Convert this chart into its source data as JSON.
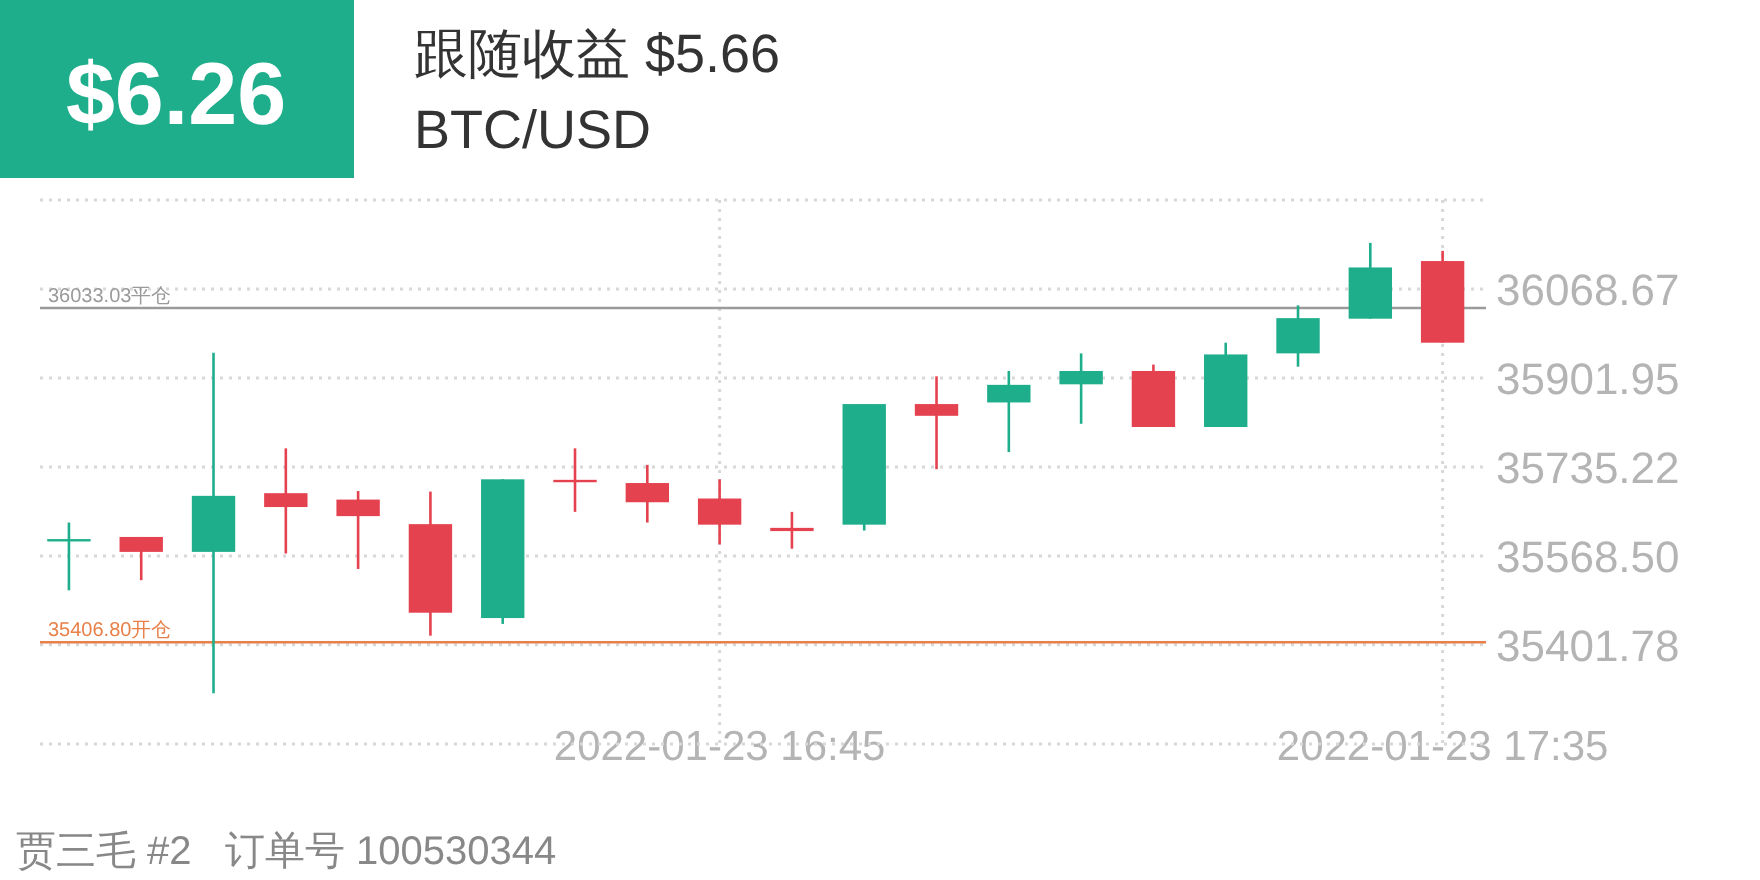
{
  "chart_data": {
    "type": "candlestick",
    "title": "跟随收益 $5.66",
    "subtitle": "BTC/USD",
    "annotations": [
      "$6.26",
      "贾三毛 #2   订单号 100530344"
    ],
    "x": [
      "2022-01-23T16:00",
      "2022-01-23T16:05",
      "2022-01-23T16:10",
      "2022-01-23T16:15",
      "2022-01-23T16:20",
      "2022-01-23T16:25",
      "2022-01-23T16:30",
      "2022-01-23T16:35",
      "2022-01-23T16:40",
      "2022-01-23T16:45",
      "2022-01-23T16:50",
      "2022-01-23T16:55",
      "2022-01-23T17:00",
      "2022-01-23T17:05",
      "2022-01-23T17:10",
      "2022-01-23T17:15",
      "2022-01-23T17:20",
      "2022-01-23T17:25",
      "2022-01-23T17:30",
      "2022-01-23T17:35"
    ],
    "ohlc": [
      [
        35598,
        35631,
        35504,
        35600
      ],
      [
        35604,
        35604,
        35523,
        35576
      ],
      [
        35576,
        35949,
        35311,
        35681
      ],
      [
        35686,
        35770,
        35573,
        35660
      ],
      [
        35674,
        35690,
        35544,
        35643
      ],
      [
        35628,
        35689,
        35419,
        35462
      ],
      [
        35452,
        35712,
        35441,
        35712
      ],
      [
        35711,
        35770,
        35651,
        35707
      ],
      [
        35705,
        35739,
        35631,
        35669
      ],
      [
        35676,
        35712,
        35590,
        35627
      ],
      [
        35621,
        35651,
        35582,
        35615
      ],
      [
        35627,
        35853,
        35616,
        35853
      ],
      [
        35853,
        35905,
        35731,
        35831
      ],
      [
        35856,
        35915,
        35763,
        35889
      ],
      [
        35890,
        35948,
        35816,
        35915
      ],
      [
        35915,
        35927,
        35810,
        35810
      ],
      [
        35810,
        35968,
        35810,
        35946
      ],
      [
        35948,
        36038,
        35923,
        36014
      ],
      [
        36013,
        36155,
        36013,
        36109
      ],
      [
        36121,
        36140,
        35968,
        35968
      ]
    ],
    "colors": [
      "#1fae8c",
      "#e5424f",
      "#1fae8c",
      "#e5424f",
      "#e5424f",
      "#e5424f",
      "#1fae8c",
      "#e5424f",
      "#e5424f",
      "#e5424f",
      "#e5424f",
      "#1fae8c",
      "#e5424f",
      "#1fae8c",
      "#1fae8c",
      "#e5424f",
      "#1fae8c",
      "#1fae8c",
      "#1fae8c",
      "#e5424f"
    ],
    "xlim": [
      "2022-01-23T15:58",
      "2022-01-23T17:38"
    ],
    "xticks": [
      {
        "value": "2022-01-23T16:45",
        "label": "2022-01-23 16:45"
      },
      {
        "value": "2022-01-23T17:35",
        "label": "2022-01-23 17:35"
      }
    ],
    "ylim": [
      35216,
      36235.39
    ],
    "yticks": [
      {
        "value": 36235.39,
        "label": null
      },
      {
        "value": 36068.67,
        "label": "36068.67"
      },
      {
        "value": 35901.95,
        "label": "35901.95"
      },
      {
        "value": 35735.22,
        "label": "35735.22"
      },
      {
        "value": 35568.5,
        "label": "35568.50"
      },
      {
        "value": 35401.78,
        "label": "35401.78"
      }
    ],
    "grid": true,
    "ref_lines": [
      {
        "axis": "y",
        "value": 36033.03,
        "label": "36033.03平仓",
        "color": "#9a9a9a"
      },
      {
        "axis": "y",
        "value": 35406.8,
        "label": "35406.80开仓",
        "color": "#e8804a"
      }
    ]
  }
}
